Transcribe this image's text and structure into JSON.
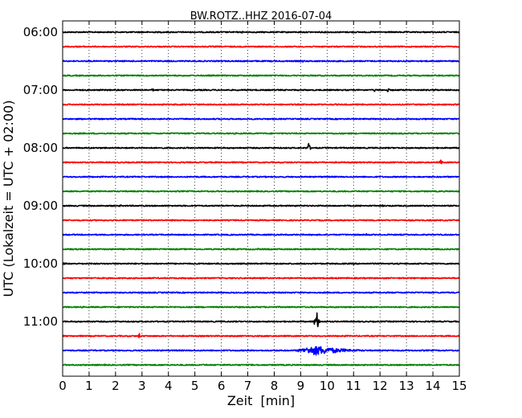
{
  "chart_data": {
    "type": "line",
    "title": "BW.ROTZ..HHZ 2016-07-04",
    "xlabel": "Zeit  [min]",
    "ylabel": "UTC (Lokalzeit = UTC + 02:00)",
    "xlim": [
      0,
      15
    ],
    "x_ticks": [
      "0",
      "1",
      "2",
      "3",
      "4",
      "5",
      "6",
      "7",
      "8",
      "9",
      "10",
      "11",
      "12",
      "13",
      "14",
      "15"
    ],
    "y_tick_labels": [
      "06:00",
      "07:00",
      "08:00",
      "09:00",
      "10:00",
      "11:00"
    ],
    "grid": true,
    "trace_interval_minutes": 15,
    "trace_colors": [
      "#000000",
      "#ff0000",
      "#0000ff",
      "#008000"
    ],
    "traces": [
      {
        "start": "06:00",
        "events": [
          {
            "t": 6.8,
            "amp": 0.25
          },
          {
            "t": 9.8,
            "amp": 0.2
          }
        ]
      },
      {
        "start": "06:15",
        "events": []
      },
      {
        "start": "06:30",
        "events": [
          {
            "t": 9.1,
            "amp": 0.3
          }
        ]
      },
      {
        "start": "06:45",
        "events": []
      },
      {
        "start": "07:00",
        "events": [
          {
            "t": 3.4,
            "amp": 0.35
          },
          {
            "t": 11.8,
            "amp": 0.4
          },
          {
            "t": 12.3,
            "amp": 0.5
          },
          {
            "t": 14.1,
            "amp": 0.25
          }
        ]
      },
      {
        "start": "07:15",
        "events": []
      },
      {
        "start": "07:30",
        "events": []
      },
      {
        "start": "07:45",
        "events": [
          {
            "t": 7.5,
            "amp": 0.2
          }
        ]
      },
      {
        "start": "08:00",
        "events": [
          {
            "t": 9.3,
            "amp": 1.1
          }
        ]
      },
      {
        "start": "08:15",
        "events": [
          {
            "t": 14.3,
            "amp": 0.6
          }
        ]
      },
      {
        "start": "08:30",
        "events": []
      },
      {
        "start": "08:45",
        "events": []
      },
      {
        "start": "09:00",
        "events": [
          {
            "t": 2.2,
            "amp": 0.2
          },
          {
            "t": 12.1,
            "amp": 0.2
          }
        ]
      },
      {
        "start": "09:15",
        "events": []
      },
      {
        "start": "09:30",
        "events": [
          {
            "t": 11.5,
            "amp": 0.35
          }
        ]
      },
      {
        "start": "09:45",
        "events": [
          {
            "t": 7.4,
            "amp": 0.2
          }
        ]
      },
      {
        "start": "10:00",
        "events": [
          {
            "t": 0.05,
            "amp": 0.35
          },
          {
            "t": 11.0,
            "amp": 0.25
          }
        ]
      },
      {
        "start": "10:15",
        "events": []
      },
      {
        "start": "10:30",
        "events": []
      },
      {
        "start": "10:45",
        "events": []
      },
      {
        "start": "11:00",
        "events": [
          {
            "t": 9.6,
            "amp": 3.0
          }
        ]
      },
      {
        "start": "11:15",
        "events": [
          {
            "t": 2.9,
            "amp": 0.6
          }
        ]
      },
      {
        "start": "11:30",
        "events": [
          {
            "t": 9.6,
            "amp": 1.0,
            "coda": true
          }
        ]
      },
      {
        "start": "11:45",
        "events": []
      }
    ]
  }
}
